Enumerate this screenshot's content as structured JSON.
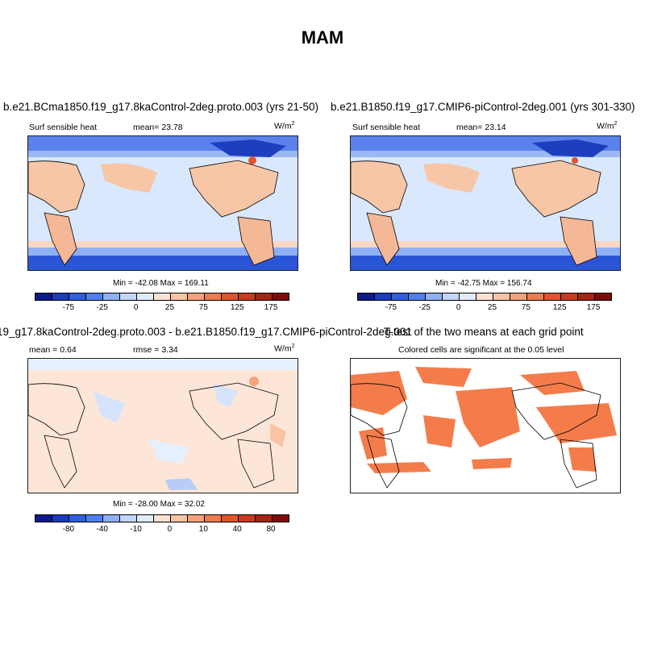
{
  "title": "MAM",
  "panels": [
    {
      "title": "b.e21.BCma1850.f19_g17.8kaControl-2deg.proto.003 (yrs 21-50)",
      "variable": "Surf sensible heat",
      "mean_label": "mean=",
      "mean_value": "23.78",
      "units_base": "W/m",
      "units_exp": "2",
      "minmax": "Min = -42.08 Max = 169.11"
    },
    {
      "title": "b.e21.B1850.f19_g17.CMIP6-piControl-2deg.001 (yrs 301-330)",
      "variable": "Surf sensible heat",
      "mean_label": "mean=",
      "mean_value": "23.14",
      "units_base": "W/m",
      "units_exp": "2",
      "minmax": "Min = -42.75 Max = 156.74"
    },
    {
      "title": "19_g17.8kaControl-2deg.proto.003 - b.e21.B1850.f19_g17.CMIP6-piControl-2deg.001",
      "mean_label": "mean =",
      "mean_value": "0.64",
      "rmse_label": "rmse =",
      "rmse_value": "3.34",
      "units_base": "W/m",
      "units_exp": "2",
      "minmax": "Min = -28.00 Max = 32.02"
    },
    {
      "title": "T-test of the two means at each grid point",
      "subtitle": "Colored cells are significant at the 0.05 level"
    }
  ],
  "colorbars": {
    "abs": {
      "ticks": [
        "-75",
        "-25",
        "0",
        "25",
        "75",
        "125",
        "175"
      ],
      "colors": [
        "#0d1a8c",
        "#1a3bbf",
        "#2f5fe0",
        "#4f7ff0",
        "#8fb0f5",
        "#c2d6fa",
        "#e0ecfd",
        "#fde2d4",
        "#f9c4a6",
        "#f5a27a",
        "#ee7a4e",
        "#e0542e",
        "#c93a1f",
        "#a62414",
        "#800a0a"
      ]
    },
    "diff": {
      "ticks": [
        "-80",
        "-40",
        "-10",
        "0",
        "10",
        "40",
        "80"
      ],
      "colors": [
        "#0d1a8c",
        "#1a3bbf",
        "#2f5fe0",
        "#4f7ff0",
        "#8fb0f5",
        "#c2d6fa",
        "#e0ecfd",
        "#fde2d4",
        "#f9c4a6",
        "#f5a27a",
        "#ee7a4e",
        "#e0542e",
        "#c93a1f",
        "#a62414",
        "#800a0a"
      ]
    }
  },
  "colors": {
    "ocean_light": "#d6e6fb",
    "land_warm": "#f6c6a6",
    "polar": "#2a55d6",
    "signif": "#f47c4b"
  }
}
